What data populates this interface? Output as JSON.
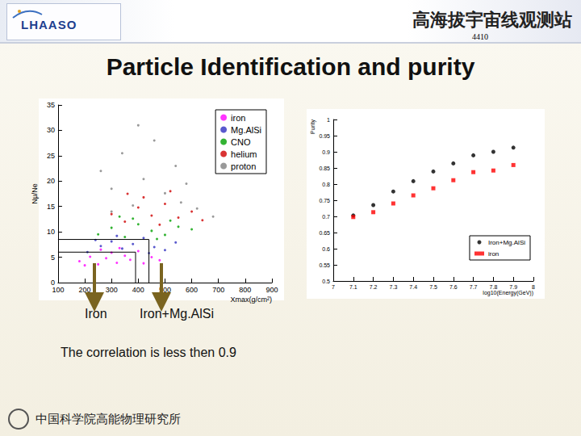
{
  "slide": {
    "header_logo": "LHAASO",
    "header_text": "高海拔宇宙线观测站",
    "page_number": "4410",
    "title": "Particle Identification and purity",
    "caption": "The correlation is less then 0.9",
    "footer": "中国科学院高能物理研究所"
  },
  "chart_data": [
    {
      "type": "scatter",
      "x_label": "Xmax(g/cm²)",
      "y_label": "Nμ/Ne",
      "xlim": [
        100,
        900
      ],
      "xticks": [
        100,
        200,
        300,
        400,
        500,
        600,
        700,
        800,
        900
      ],
      "ylim": [
        0,
        35
      ],
      "yticks": [
        0,
        5,
        10,
        15,
        20,
        25,
        30,
        35
      ],
      "legend": "upper right",
      "series": [
        {
          "name": "iron",
          "color": "#ff00ff",
          "marker": "circle",
          "x": [
            180,
            220,
            250,
            280,
            300,
            320,
            350,
            370,
            400,
            420,
            450,
            480,
            260,
            330,
            200
          ],
          "values": [
            4.2,
            5.1,
            3.6,
            4.8,
            5.9,
            3.9,
            5.3,
            4.5,
            6.2,
            3.8,
            5.0,
            4.4,
            6.5,
            6.8,
            3.4
          ]
        },
        {
          "name": "Mg.AlSi",
          "color": "#3030c0",
          "marker": "circle",
          "x": [
            210,
            260,
            300,
            340,
            380,
            420,
            460,
            500,
            540,
            320,
            240,
            440
          ],
          "values": [
            6.0,
            7.2,
            8.1,
            6.7,
            7.6,
            8.8,
            7.0,
            6.4,
            7.9,
            9.2,
            8.4,
            5.8
          ]
        },
        {
          "name": "CNO",
          "color": "#00a000",
          "marker": "circle",
          "x": [
            250,
            300,
            350,
            400,
            450,
            500,
            550,
            600,
            380,
            470,
            330,
            520
          ],
          "values": [
            9.5,
            10.8,
            9.0,
            11.5,
            10.2,
            9.4,
            11.0,
            10.5,
            12.6,
            8.6,
            13.0,
            12.2
          ]
        },
        {
          "name": "helium",
          "color": "#d00000",
          "marker": "circle",
          "x": [
            300,
            350,
            400,
            450,
            500,
            550,
            600,
            420,
            360,
            480,
            640,
            520
          ],
          "values": [
            13.5,
            12.0,
            14.8,
            13.2,
            15.5,
            12.8,
            14.0,
            16.8,
            17.5,
            11.4,
            12.3,
            18.0
          ]
        },
        {
          "name": "proton",
          "color": "#808080",
          "marker": "circle",
          "x": [
            260,
            300,
            340,
            380,
            420,
            460,
            500,
            540,
            580,
            620,
            680,
            400,
            300,
            560
          ],
          "values": [
            22.0,
            18.5,
            25.5,
            15.2,
            20.4,
            28.0,
            17.6,
            23.0,
            19.5,
            14.6,
            13.0,
            31.0,
            14.0,
            15.8
          ]
        }
      ],
      "cuts": [
        {
          "name": "Iron",
          "x": 390,
          "y": 6
        },
        {
          "name": "Iron+Mg.AlSi",
          "x": 440,
          "y": 8.5
        }
      ]
    },
    {
      "type": "scatter",
      "x_label": "log10(Energy(GeV))",
      "y_label": "Purity",
      "xlim": [
        7,
        8
      ],
      "xticks": [
        7,
        7.1,
        7.2,
        7.3,
        7.4,
        7.5,
        7.6,
        7.7,
        7.8,
        7.9,
        8
      ],
      "ylim": [
        0.5,
        1
      ],
      "yticks": [
        0.5,
        0.55,
        0.6,
        0.65,
        0.7,
        0.75,
        0.8,
        0.85,
        0.9,
        0.95,
        1
      ],
      "legend": "lower right",
      "x": [
        7.1,
        7.2,
        7.3,
        7.4,
        7.5,
        7.6,
        7.7,
        7.8,
        7.9
      ],
      "series": [
        {
          "name": "Iron+Mg.AlSi",
          "color": "#000000",
          "marker": "circle",
          "values": [
            0.703,
            0.735,
            0.777,
            0.809,
            0.839,
            0.864,
            0.889,
            0.9,
            0.913
          ]
        },
        {
          "name": "iron",
          "color": "#ff0000",
          "marker": "square",
          "values": [
            0.698,
            0.713,
            0.74,
            0.765,
            0.787,
            0.812,
            0.837,
            0.842,
            0.859
          ]
        }
      ]
    }
  ]
}
